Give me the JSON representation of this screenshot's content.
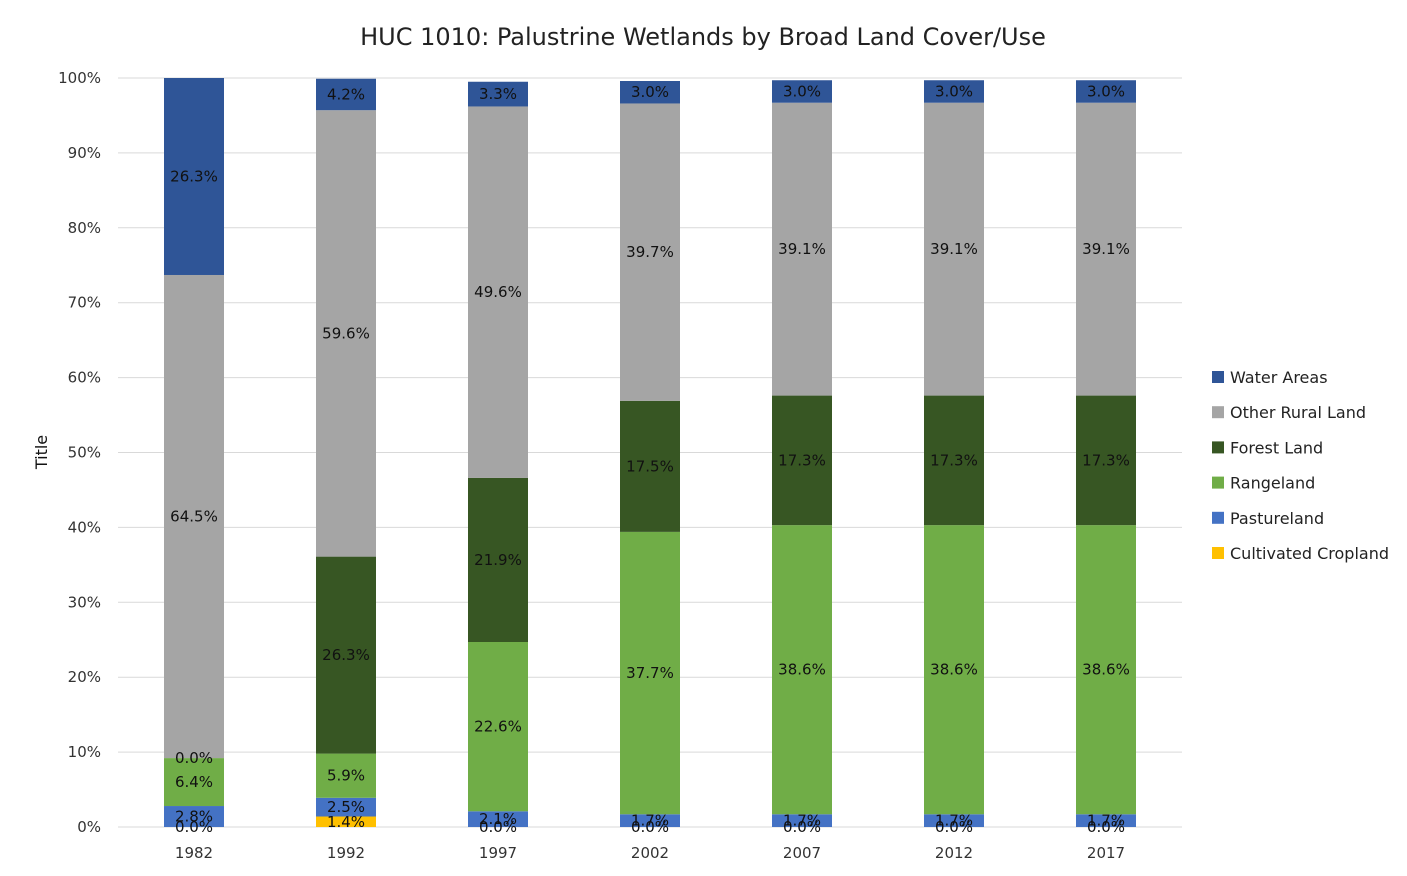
{
  "chart_data": {
    "type": "bar",
    "stacked": true,
    "percent": true,
    "title": "HUC 1010: Palustrine Wetlands by Broad Land Cover/Use",
    "xlabel": "",
    "ylabel": "Title",
    "ylim": [
      0,
      100
    ],
    "yticks": [
      "0%",
      "10%",
      "20%",
      "30%",
      "40%",
      "50%",
      "60%",
      "70%",
      "80%",
      "90%",
      "100%"
    ],
    "grid": true,
    "legend_position": "right",
    "categories": [
      "1982",
      "1992",
      "1997",
      "2002",
      "2007",
      "2012",
      "2017"
    ],
    "series": [
      {
        "name": "Cultivated Cropland",
        "color": "#FFC000",
        "values": [
          0.0,
          1.4,
          0.0,
          0.0,
          0.0,
          0.0,
          0.0
        ],
        "labels": [
          "0.0%",
          "1.4%",
          "0.0%",
          "0.0%",
          "0.0%",
          "0.0%",
          "0.0%"
        ]
      },
      {
        "name": "Pastureland",
        "color": "#4472C4",
        "values": [
          2.8,
          2.5,
          2.1,
          1.7,
          1.7,
          1.7,
          1.7
        ],
        "labels": [
          "2.8%",
          "2.5%",
          "2.1%",
          "1.7%",
          "1.7%",
          "1.7%",
          "1.7%"
        ]
      },
      {
        "name": "Rangeland",
        "color": "#70AD47",
        "values": [
          6.4,
          5.9,
          22.6,
          37.7,
          38.6,
          38.6,
          38.6
        ],
        "labels": [
          "6.4%",
          "5.9%",
          "22.6%",
          "37.7%",
          "38.6%",
          "38.6%",
          "38.6%"
        ]
      },
      {
        "name": "Forest Land",
        "color": "#375623",
        "values": [
          0.0,
          26.3,
          21.9,
          17.5,
          17.3,
          17.3,
          17.3
        ],
        "labels": [
          "0.0%",
          "26.3%",
          "21.9%",
          "17.5%",
          "17.3%",
          "17.3%",
          "17.3%"
        ]
      },
      {
        "name": "Other Rural Land",
        "color": "#A5A5A5",
        "values": [
          64.5,
          59.6,
          49.6,
          39.7,
          39.1,
          39.1,
          39.1
        ],
        "labels": [
          "64.5%",
          "59.6%",
          "49.6%",
          "39.7%",
          "39.1%",
          "39.1%",
          "39.1%"
        ]
      },
      {
        "name": "Water Areas",
        "color": "#2F5597",
        "values": [
          26.3,
          4.2,
          3.3,
          3.0,
          3.0,
          3.0,
          3.0
        ],
        "labels": [
          "26.3%",
          "4.2%",
          "3.3%",
          "3.0%",
          "3.0%",
          "3.0%",
          "3.0%"
        ]
      }
    ],
    "legend_order": [
      "Water Areas",
      "Other Rural Land",
      "Forest Land",
      "Rangeland",
      "Pastureland",
      "Cultivated Cropland"
    ]
  }
}
